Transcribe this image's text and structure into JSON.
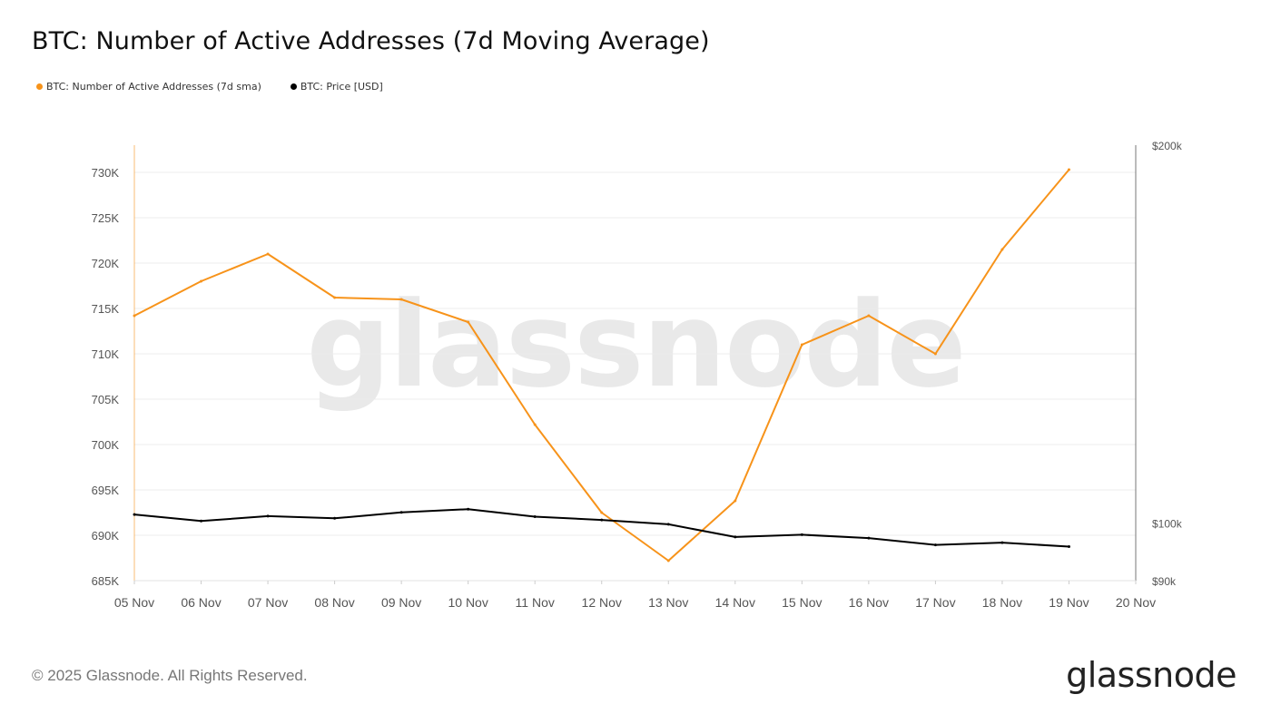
{
  "title": "BTC: Number of Active Addresses (7d Moving Average)",
  "legend": [
    {
      "label": "BTC: Number of Active Addresses (7d sma)",
      "color": "#F7931A"
    },
    {
      "label": "BTC: Price [USD]",
      "color": "#000000"
    }
  ],
  "watermark": "glassnode",
  "footer": "© 2025 Glassnode. All Rights Reserved.",
  "logo": "glassnode",
  "chart_data": {
    "type": "line",
    "title": "BTC: Number of Active Addresses (7d Moving Average)",
    "x": [
      "05 Nov",
      "06 Nov",
      "07 Nov",
      "08 Nov",
      "09 Nov",
      "10 Nov",
      "11 Nov",
      "12 Nov",
      "13 Nov",
      "14 Nov",
      "15 Nov",
      "16 Nov",
      "17 Nov",
      "18 Nov",
      "19 Nov"
    ],
    "x_ticks": [
      "05 Nov",
      "06 Nov",
      "07 Nov",
      "08 Nov",
      "09 Nov",
      "10 Nov",
      "11 Nov",
      "12 Nov",
      "13 Nov",
      "14 Nov",
      "15 Nov",
      "16 Nov",
      "17 Nov",
      "18 Nov",
      "19 Nov",
      "20 Nov"
    ],
    "series": [
      {
        "name": "BTC: Number of Active Addresses (7d sma)",
        "axis": "left",
        "color": "#F7931A",
        "values": [
          714200,
          718000,
          721000,
          716200,
          716000,
          713500,
          702200,
          692500,
          687200,
          693800,
          711000,
          714200,
          710000,
          721500,
          730300
        ]
      },
      {
        "name": "BTC: Price [USD]",
        "axis": "right",
        "color": "#000000",
        "values": [
          101600,
          100400,
          101300,
          100900,
          102000,
          102600,
          101200,
          100600,
          99800,
          97500,
          97900,
          97300,
          96100,
          96500,
          95800
        ]
      }
    ],
    "y_left": {
      "ticks": [
        "685K",
        "690K",
        "695K",
        "700K",
        "705K",
        "710K",
        "715K",
        "720K",
        "725K",
        "730K"
      ],
      "tick_values": [
        685000,
        690000,
        695000,
        700000,
        705000,
        710000,
        715000,
        720000,
        725000,
        730000
      ],
      "range": [
        685000,
        733000
      ]
    },
    "y_right": {
      "scale": "log",
      "ticks": [
        "$90k",
        "$100k",
        "$200k"
      ],
      "tick_values": [
        90000,
        100000,
        200000
      ],
      "range": [
        90000,
        200000
      ]
    },
    "grid": true,
    "legend_position": "top-left"
  }
}
